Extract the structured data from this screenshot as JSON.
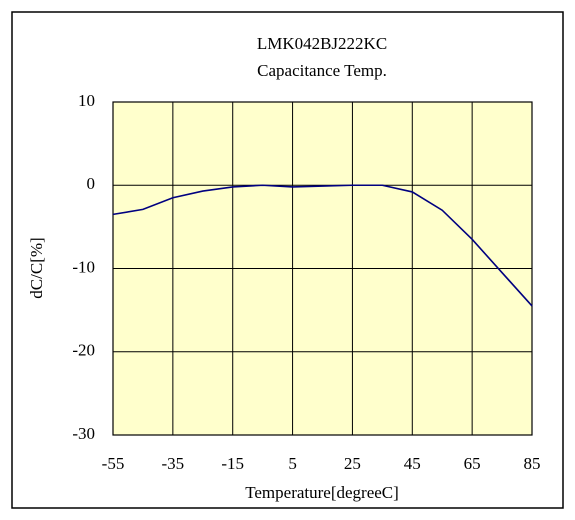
{
  "chart_data": {
    "type": "line",
    "title": "LMK042BJ222KC",
    "subtitle": "Capacitance Temp.",
    "x_label": "Temperature[degreeC]",
    "y_label": "dC/C[%]",
    "x": [
      -55,
      -45,
      -35,
      -25,
      -15,
      -5,
      5,
      15,
      25,
      35,
      45,
      55,
      65,
      75,
      85
    ],
    "series": [
      {
        "name": "LMK042BJ222KC",
        "color": "#000080",
        "values": [
          -3.5,
          -2.9,
          -1.5,
          -0.7,
          -0.2,
          0,
          -0.2,
          -0.1,
          0,
          0,
          -0.8,
          -3,
          -6.5,
          -10.5,
          -14.5
        ]
      }
    ],
    "xlim": [
      -55,
      85
    ],
    "xticks": [
      -55,
      -35,
      -15,
      5,
      25,
      45,
      65,
      85
    ],
    "ylim": [
      -30,
      10
    ],
    "yticks": [
      -30,
      -20,
      -10,
      0,
      10
    ],
    "grid": true,
    "plot_background": "#ffffcc"
  }
}
